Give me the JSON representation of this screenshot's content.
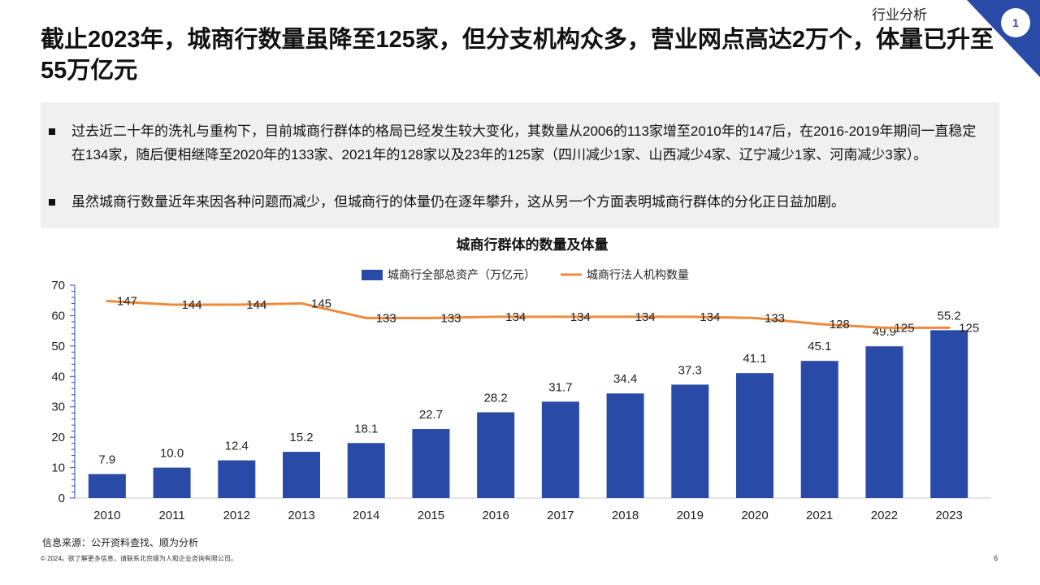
{
  "header": {
    "section_label": "行业分析",
    "corner_badge": "1",
    "title": "截止2023年，城商行数量虽降至125家，但分支机构众多，营业网点高达2万个，体量已升至55万亿元"
  },
  "summary": {
    "bullets": [
      "过去近二十年的洗礼与重构下，目前城商行群体的格局已经发生较大变化，其数量从2006的113家增至2010年的147后，在2016-2019年期间一直稳定在134家，随后便相继降至2020年的133家、2021年的128家以及23年的125家（四川减少1家、山西减少4家、辽宁减少1家、河南减少3家）。",
      "虽然城商行数量近年来因各种问题而减少，但城商行的体量仍在逐年攀升，这从另一个方面表明城商行群体的分化正日益加剧。"
    ]
  },
  "chart_data": {
    "type": "bar",
    "title": "城商行群体的数量及体量",
    "categories": [
      "2010",
      "2011",
      "2012",
      "2013",
      "2014",
      "2015",
      "2016",
      "2017",
      "2018",
      "2019",
      "2020",
      "2021",
      "2022",
      "2023"
    ],
    "series": [
      {
        "name": "城商行全部总资产（万亿元）",
        "type": "bar",
        "color": "#2a4aa8",
        "values": [
          7.9,
          10.0,
          12.4,
          15.2,
          18.1,
          22.7,
          28.2,
          31.7,
          34.4,
          37.3,
          41.1,
          45.1,
          49.9,
          55.2
        ],
        "labels": [
          "7.9",
          "10.0",
          "12.4",
          "15.2",
          "18.1",
          "22.7",
          "28.2",
          "31.7",
          "34.4",
          "37.3",
          "41.1",
          "45.1",
          "49.9",
          "55.2"
        ]
      },
      {
        "name": "城商行法人机构数量",
        "type": "line",
        "color": "#ef8a3a",
        "values": [
          147,
          144,
          144,
          145,
          133,
          133,
          134,
          134,
          134,
          134,
          133,
          128,
          125,
          125
        ],
        "labels": [
          "147",
          "144",
          "144",
          "145",
          "133",
          "133",
          "134",
          "134",
          "134",
          "134",
          "133",
          "128",
          "125",
          "125"
        ]
      }
    ],
    "y_ticks": [
      "0",
      "10",
      "20",
      "30",
      "40",
      "50",
      "60",
      "70"
    ],
    "ylim": [
      0,
      70
    ],
    "legend_position": "top-center",
    "grid": false
  },
  "footer": {
    "source": "信息来源：公开资料查找、顺为分析",
    "copyright": "© 2024。欲了解更多信息，请联系北京顺为人和企业咨询有限公司。",
    "page_number": "6"
  }
}
